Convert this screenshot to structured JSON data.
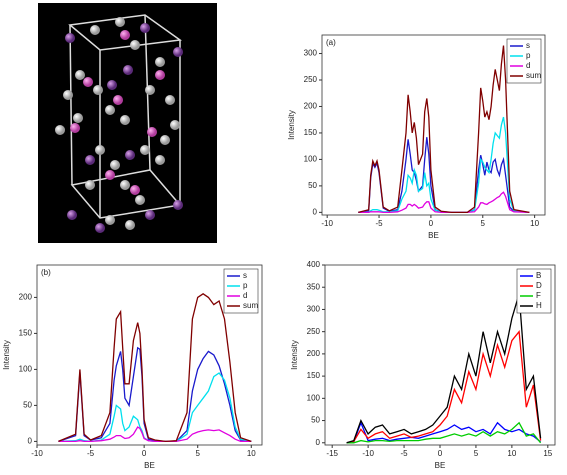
{
  "chart_data": [
    {
      "type": "line",
      "annotation": "(a)",
      "xlabel": "BE",
      "ylabel": "Intensity",
      "x": [
        -7,
        -6,
        -5.8,
        -5.6,
        -5.4,
        -5.2,
        -5,
        -4.6,
        -4,
        -3.2,
        -2.8,
        -2.4,
        -2.2,
        -2,
        -1.8,
        -1.6,
        -1.4,
        -1.2,
        -0.8,
        -0.6,
        -0.4,
        -0.2,
        0,
        0.4,
        1,
        2,
        3.5,
        4.2,
        4.6,
        4.8,
        5,
        5.2,
        5.4,
        5.6,
        5.8,
        6,
        6.2,
        6.4,
        6.6,
        6.8,
        7,
        7.2,
        7.6,
        8,
        9.5
      ],
      "series": [
        {
          "name": "s",
          "color": "#1a1acc",
          "values": [
            0,
            3,
            65,
            92,
            85,
            93,
            75,
            8,
            2,
            5,
            40,
            100,
            138,
            110,
            80,
            75,
            60,
            40,
            50,
            100,
            142,
            110,
            50,
            5,
            1,
            0,
            0,
            5,
            80,
            108,
            90,
            70,
            95,
            80,
            75,
            95,
            100,
            80,
            70,
            90,
            100,
            70,
            10,
            2,
            0
          ]
        },
        {
          "name": "p",
          "color": "#00e0ee",
          "values": [
            0,
            0,
            3,
            5,
            5,
            5,
            4,
            1,
            1,
            3,
            25,
            40,
            70,
            65,
            55,
            80,
            70,
            40,
            45,
            75,
            50,
            55,
            25,
            4,
            1,
            0,
            0,
            4,
            55,
            100,
            95,
            85,
            80,
            75,
            100,
            130,
            150,
            145,
            140,
            165,
            180,
            150,
            25,
            3,
            0
          ]
        },
        {
          "name": "d",
          "color": "#e000e0",
          "values": [
            0,
            0,
            1,
            1,
            1,
            1,
            1,
            0,
            0,
            1,
            4,
            8,
            15,
            15,
            12,
            15,
            12,
            8,
            10,
            16,
            20,
            20,
            8,
            1,
            0,
            0,
            0,
            1,
            10,
            18,
            18,
            16,
            15,
            18,
            20,
            22,
            25,
            28,
            30,
            35,
            38,
            30,
            5,
            1,
            0
          ]
        },
        {
          "name": "sum",
          "color": "#800000",
          "values": [
            0,
            5,
            70,
            97,
            88,
            97,
            80,
            10,
            3,
            10,
            80,
            150,
            222,
            190,
            150,
            170,
            140,
            90,
            110,
            190,
            215,
            180,
            80,
            10,
            2,
            0,
            0,
            10,
            150,
            235,
            210,
            180,
            190,
            175,
            200,
            240,
            270,
            250,
            230,
            280,
            315,
            250,
            40,
            5,
            0
          ]
        }
      ],
      "xlim": [
        -10.5,
        11
      ],
      "xticks": [
        -10,
        -5,
        0,
        5,
        10
      ],
      "ylim": [
        -5,
        335
      ],
      "yticks": [
        0,
        50,
        100,
        150,
        200,
        250,
        300
      ],
      "legend": "top-right"
    },
    {
      "type": "line",
      "annotation": "(b)",
      "xlabel": "BE",
      "ylabel": "Intensity",
      "x": [
        -8,
        -6.4,
        -6,
        -5.6,
        -5,
        -4,
        -3.2,
        -2.8,
        -2.6,
        -2.2,
        -2,
        -1.8,
        -1.4,
        -1,
        -0.6,
        -0.4,
        -0.2,
        0,
        0.4,
        1,
        2,
        3,
        4,
        4.5,
        5,
        5.5,
        6,
        6.5,
        7,
        7.5,
        8,
        8.5,
        9,
        10
      ],
      "series": [
        {
          "name": "s",
          "color": "#1a1acc",
          "values": [
            0,
            8,
            96,
            8,
            2,
            5,
            25,
            85,
            105,
            125,
            100,
            60,
            50,
            90,
            130,
            128,
            90,
            25,
            3,
            1,
            0,
            0,
            15,
            70,
            100,
            115,
            125,
            120,
            105,
            80,
            50,
            15,
            2,
            0
          ]
        },
        {
          "name": "p",
          "color": "#00e0ee",
          "values": [
            0,
            1,
            3,
            1,
            0,
            2,
            10,
            35,
            50,
            45,
            25,
            15,
            20,
            35,
            30,
            20,
            15,
            5,
            1,
            0,
            0,
            0,
            10,
            40,
            50,
            60,
            70,
            90,
            95,
            85,
            60,
            20,
            3,
            0
          ]
        },
        {
          "name": "d",
          "color": "#e000e0",
          "values": [
            0,
            0,
            1,
            0,
            0,
            1,
            3,
            6,
            8,
            8,
            6,
            4,
            5,
            10,
            20,
            18,
            12,
            4,
            1,
            0,
            0,
            0,
            3,
            10,
            13,
            15,
            16,
            15,
            16,
            12,
            8,
            3,
            0,
            0
          ]
        },
        {
          "name": "sum",
          "color": "#800000",
          "values": [
            0,
            10,
            100,
            10,
            2,
            8,
            40,
            130,
            170,
            180,
            130,
            80,
            80,
            140,
            165,
            150,
            100,
            30,
            5,
            2,
            0,
            1,
            40,
            170,
            200,
            205,
            200,
            190,
            195,
            170,
            110,
            40,
            5,
            0
          ]
        }
      ],
      "xlim": [
        -10,
        11
      ],
      "xticks": [
        -10,
        -5,
        0,
        5,
        10
      ],
      "ylim": [
        -5,
        245
      ],
      "yticks": [
        0,
        50,
        100,
        150,
        200
      ],
      "legend": "top-right"
    },
    {
      "type": "line",
      "xlabel": "BE",
      "ylabel": "Intensity",
      "x": [
        -13,
        -12,
        -11,
        -10,
        -9,
        -8,
        -7,
        -6,
        -5,
        -4,
        -3,
        -2,
        -1,
        0,
        1,
        2,
        3,
        4,
        5,
        6,
        7,
        8,
        9,
        10,
        11,
        12,
        13,
        14
      ],
      "series": [
        {
          "name": "B",
          "color": "#0000ff",
          "values": [
            0,
            2,
            45,
            5,
            8,
            10,
            5,
            8,
            10,
            12,
            10,
            15,
            20,
            25,
            30,
            40,
            30,
            35,
            25,
            30,
            20,
            45,
            30,
            25,
            30,
            20,
            15,
            2
          ]
        },
        {
          "name": "D",
          "color": "#ff0000",
          "values": [
            0,
            3,
            30,
            10,
            20,
            25,
            10,
            15,
            20,
            12,
            15,
            20,
            25,
            40,
            60,
            120,
            90,
            160,
            120,
            200,
            150,
            220,
            170,
            230,
            250,
            80,
            130,
            5
          ]
        },
        {
          "name": "F",
          "color": "#00cc00",
          "values": [
            0,
            0,
            5,
            2,
            5,
            5,
            3,
            5,
            5,
            5,
            5,
            8,
            10,
            10,
            15,
            20,
            15,
            20,
            15,
            25,
            15,
            25,
            20,
            30,
            45,
            15,
            20,
            0
          ]
        },
        {
          "name": "H",
          "color": "#000000",
          "values": [
            0,
            5,
            50,
            20,
            35,
            40,
            20,
            25,
            30,
            20,
            25,
            30,
            40,
            60,
            80,
            150,
            120,
            200,
            150,
            250,
            180,
            250,
            200,
            280,
            335,
            120,
            150,
            10
          ]
        }
      ],
      "xlim": [
        -16,
        16
      ],
      "xticks": [
        -15,
        -10,
        -5,
        0,
        5,
        10,
        15
      ],
      "ylim": [
        -5,
        400
      ],
      "yticks": [
        0,
        50,
        100,
        150,
        200,
        250,
        300,
        350,
        400
      ],
      "legend": "top-right"
    }
  ]
}
